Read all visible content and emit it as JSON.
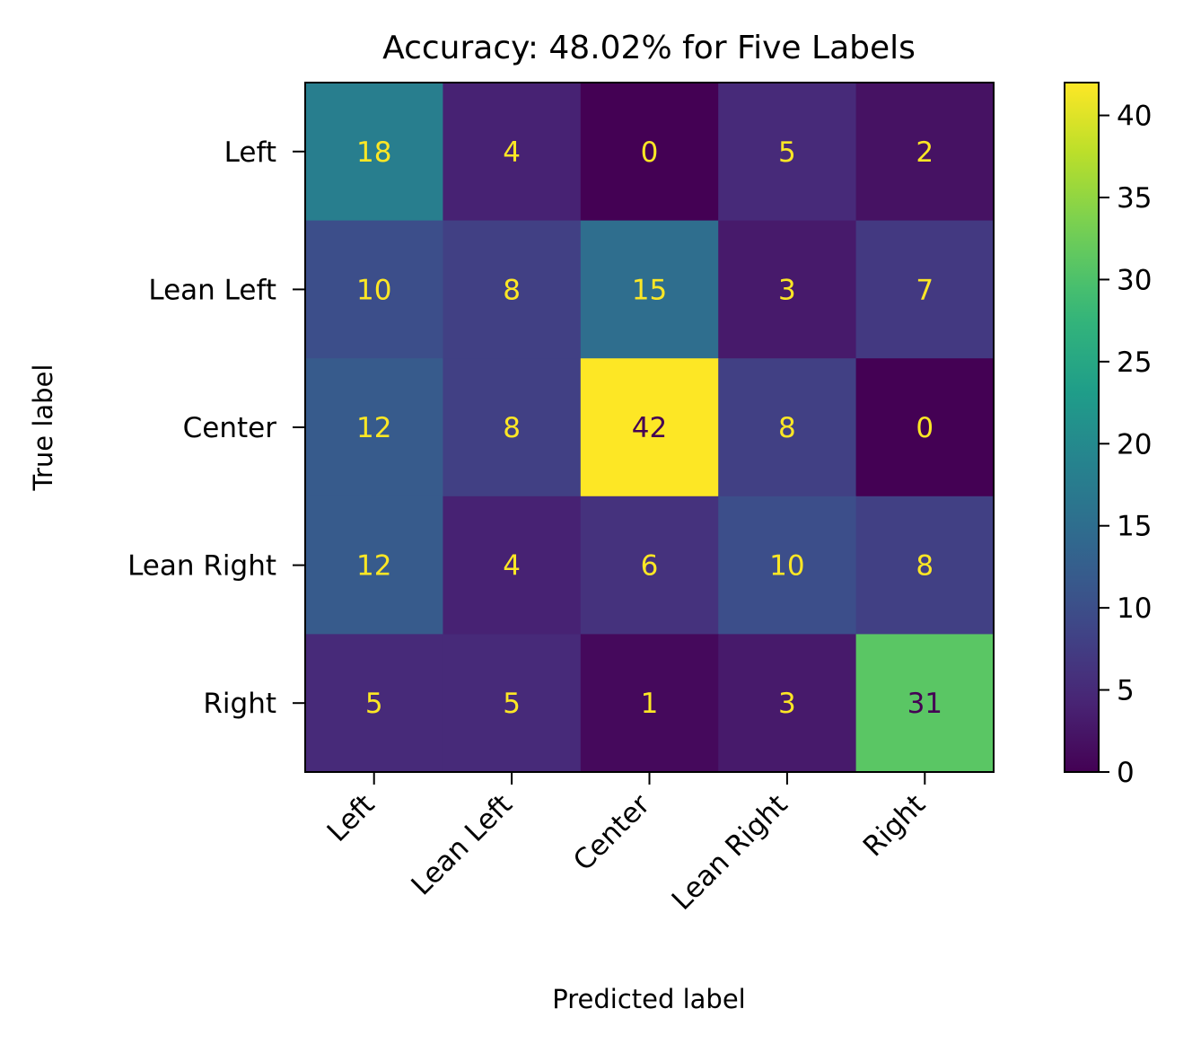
{
  "chart_data": {
    "type": "heatmap",
    "title": "Accuracy: 48.02% for Five Labels",
    "xlabel": "Predicted label",
    "ylabel": "True label",
    "x_categories": [
      "Left",
      "Lean Left",
      "Center",
      "Lean Right",
      "Right"
    ],
    "y_categories": [
      "Left",
      "Lean Left",
      "Center",
      "Lean Right",
      "Right"
    ],
    "values": [
      [
        18,
        4,
        0,
        5,
        2
      ],
      [
        10,
        8,
        15,
        3,
        7
      ],
      [
        12,
        8,
        42,
        8,
        0
      ],
      [
        12,
        4,
        6,
        10,
        8
      ],
      [
        5,
        5,
        1,
        3,
        31
      ]
    ],
    "colorbar": {
      "min": 0,
      "max": 42,
      "ticks": [
        0,
        5,
        10,
        15,
        20,
        25,
        30,
        35,
        40
      ]
    },
    "colormap": "viridis",
    "cell_text_colors": {
      "on_dark": "#fde725",
      "on_light": "#440154"
    },
    "grid": false
  }
}
